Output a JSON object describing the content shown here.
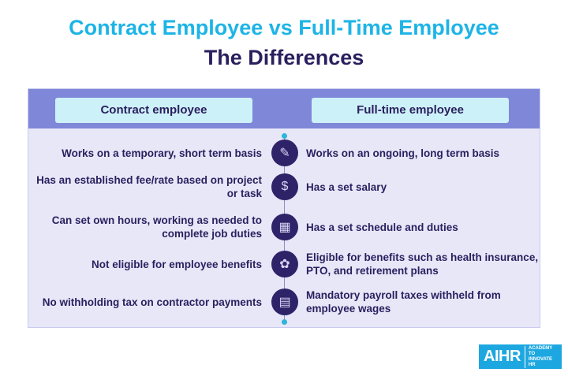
{
  "title": {
    "line1": "Contract Employee vs Full-Time Employee",
    "line2": "The Differences"
  },
  "headers": {
    "left": "Contract employee",
    "right": "Full-time employee"
  },
  "rows": [
    {
      "left": "Works on a temporary, short term basis",
      "right": "Works on an ongoing, long term basis",
      "icon": "document-pen-icon"
    },
    {
      "left": "Has an established fee/rate based on project or task",
      "right": "Has a set salary",
      "icon": "money-hands-icon"
    },
    {
      "left": "Can set own hours, working as needed to complete job duties",
      "right": "Has a set schedule and duties",
      "icon": "calendar-clock-icon"
    },
    {
      "left": "Not eligible for employee benefits",
      "right": "Eligible for benefits such as health insurance, PTO, and retirement plans",
      "icon": "benefits-hands-icon"
    },
    {
      "left": "No withholding tax on contractor payments",
      "right": "Mandatory payroll taxes withheld from employee wages",
      "icon": "tax-document-icon"
    }
  ],
  "logo": {
    "brand": "AIHR",
    "tagline": "ACADEMY TO INNOVATE HR"
  },
  "colors": {
    "title_accent": "#1db4e6",
    "navy": "#2a1f5e",
    "band": "#7f87d9",
    "panel": "#e7e7f8",
    "pill": "#cdf1f8"
  }
}
